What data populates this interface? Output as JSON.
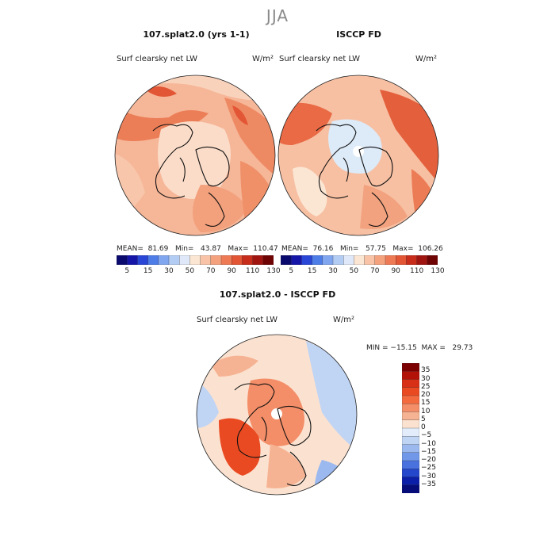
{
  "season": "JJA",
  "panels": [
    {
      "title": "107.splat2.0 (yrs 1-1)",
      "variable": "Surf clearsky net LW",
      "units": "W/m²",
      "stats": "MEAN=  81.69   Min=   43.87   Max=  110.47"
    },
    {
      "title": "ISCCP FD",
      "variable": "Surf clearsky net LW",
      "units": "W/m²",
      "stats": "MEAN=  76.16   Min=   57.75   Max=  106.26"
    },
    {
      "title": "107.splat2.0 - ISCCP FD",
      "variable": "Surf clearsky net LW",
      "units": "W/m²",
      "stats": "MIN = −15.15  MAX =   29.73"
    }
  ],
  "colorbar_abs": {
    "labels": [
      "5",
      "15",
      "30",
      "50",
      "70",
      "90",
      "110",
      "130"
    ],
    "colors": [
      "#0a0a6e",
      "#1515a8",
      "#2a46d6",
      "#4f7de8",
      "#7fa6ef",
      "#b3ccf4",
      "#dfe8f8",
      "#fbe6d4",
      "#f8c3a6",
      "#f4a17d",
      "#ee7a55",
      "#e25535",
      "#c82c1a",
      "#a11510",
      "#6e0404"
    ]
  },
  "colorbar_diff": {
    "labels": [
      "35",
      "30",
      "25",
      "20",
      "15",
      "10",
      "5",
      "0",
      "−5",
      "−10",
      "−15",
      "−20",
      "−25",
      "−30",
      "−35"
    ],
    "colors": [
      "#7c0000",
      "#b21208",
      "#d83016",
      "#ea4a22",
      "#f36a3f",
      "#f48e68",
      "#f6b393",
      "#fbe2d0",
      "#e2ecfa",
      "#c0d4f4",
      "#9bb9ef",
      "#7097e8",
      "#4a72de",
      "#2447cc",
      "#0c1fa8",
      "#060c78"
    ]
  }
}
